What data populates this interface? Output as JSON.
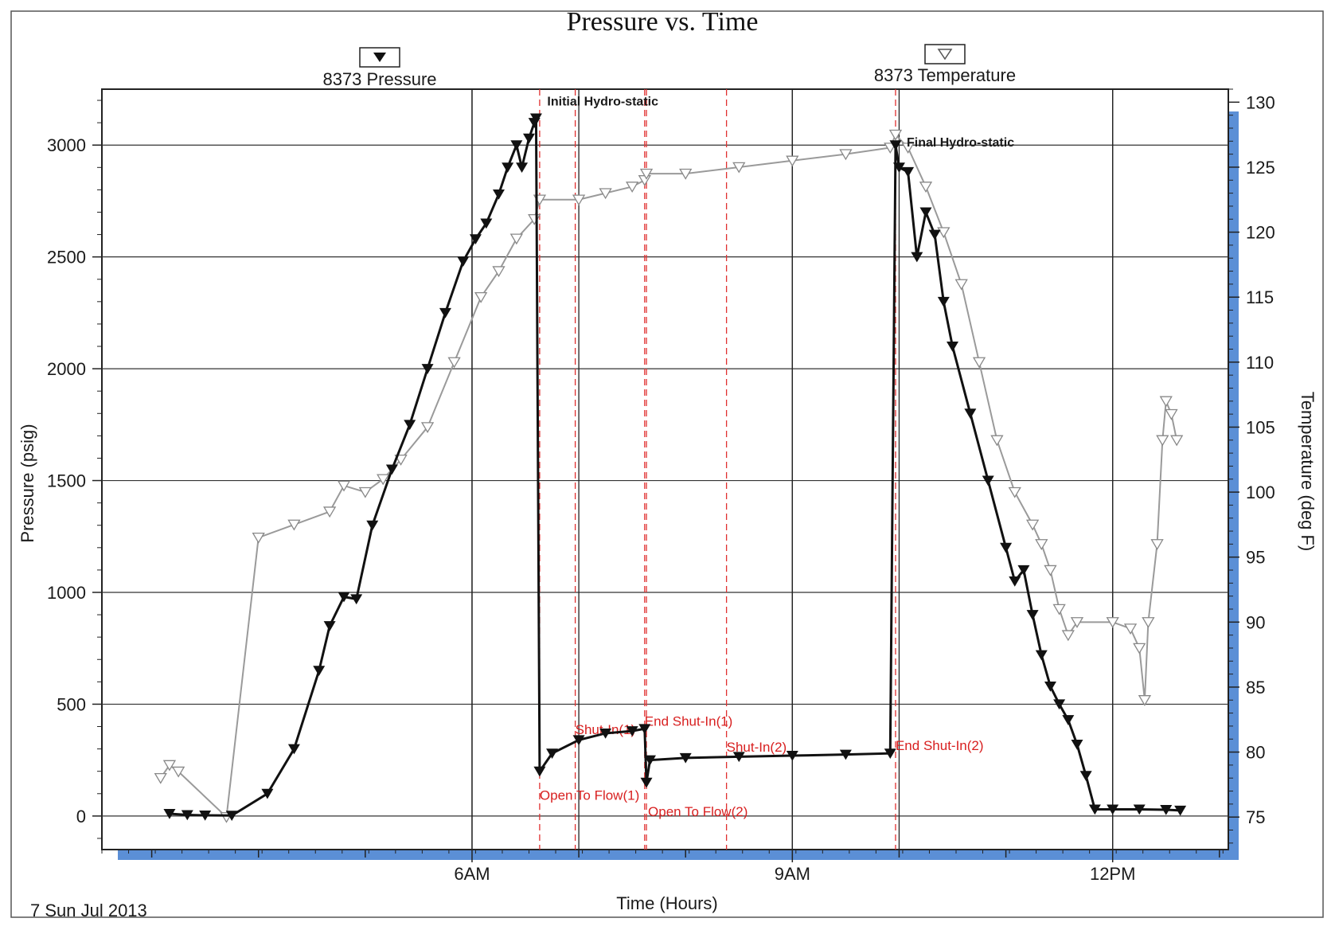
{
  "chart_data": {
    "type": "line",
    "title": "Pressure vs. Time",
    "xlabel": "Time (Hours)",
    "ylabel_left": "Pressure (psig)",
    "ylabel_right": "Temperature (deg F)",
    "date_label": "7 Sun Jul 2013",
    "x_ticks": [
      {
        "value": "06:00",
        "label": "6AM"
      },
      {
        "value": "09:00",
        "label": "9AM"
      },
      {
        "value": "12:00",
        "label": "12PM"
      }
    ],
    "xlim": [
      "02:32",
      "13:05"
    ],
    "ylim_left": [
      -150,
      3250
    ],
    "yticks_left": [
      0,
      500,
      1000,
      1500,
      2000,
      2500,
      3000
    ],
    "ylim_right": [
      72.5,
      131
    ],
    "yticks_right": [
      75,
      80,
      85,
      90,
      95,
      100,
      105,
      110,
      115,
      120,
      125,
      130
    ],
    "grid": true,
    "legend_placement": "top",
    "colors": {
      "pressure": "#111111",
      "temperature": "#999999",
      "events": "#e03030",
      "frame_shadow": "#5b8fd6"
    },
    "series": [
      {
        "name": "8373 Pressure",
        "axis": "left",
        "marker": "filled-down-triangle",
        "points": [
          [
            "03:10",
            10
          ],
          [
            "03:20",
            5
          ],
          [
            "03:30",
            3
          ],
          [
            "03:45",
            2
          ],
          [
            "04:05",
            100
          ],
          [
            "04:20",
            300
          ],
          [
            "04:34",
            650
          ],
          [
            "04:40",
            850
          ],
          [
            "04:48",
            980
          ],
          [
            "04:55",
            970
          ],
          [
            "05:04",
            1300
          ],
          [
            "05:15",
            1550
          ],
          [
            "05:25",
            1750
          ],
          [
            "05:35",
            2000
          ],
          [
            "05:45",
            2250
          ],
          [
            "05:55",
            2480
          ],
          [
            "06:02",
            2580
          ],
          [
            "06:08",
            2650
          ],
          [
            "06:15",
            2780
          ],
          [
            "06:20",
            2900
          ],
          [
            "06:25",
            3000
          ],
          [
            "06:28",
            2900
          ],
          [
            "06:32",
            3030
          ],
          [
            "06:35",
            3100
          ],
          [
            "06:36",
            3120
          ],
          [
            "06:38",
            200
          ],
          [
            "06:45",
            280
          ],
          [
            "07:00",
            340
          ],
          [
            "07:15",
            370
          ],
          [
            "07:30",
            380
          ],
          [
            "07:37",
            390
          ],
          [
            "07:38",
            150
          ],
          [
            "07:40",
            250
          ],
          [
            "08:00",
            260
          ],
          [
            "08:30",
            265
          ],
          [
            "09:00",
            270
          ],
          [
            "09:30",
            275
          ],
          [
            "09:55",
            280
          ],
          [
            "09:58",
            3000
          ],
          [
            "10:00",
            2900
          ],
          [
            "10:05",
            2880
          ],
          [
            "10:10",
            2500
          ],
          [
            "10:15",
            2700
          ],
          [
            "10:20",
            2600
          ],
          [
            "10:25",
            2300
          ],
          [
            "10:30",
            2100
          ],
          [
            "10:40",
            1800
          ],
          [
            "10:50",
            1500
          ],
          [
            "11:00",
            1200
          ],
          [
            "11:05",
            1050
          ],
          [
            "11:10",
            1100
          ],
          [
            "11:15",
            900
          ],
          [
            "11:20",
            720
          ],
          [
            "11:25",
            580
          ],
          [
            "11:30",
            500
          ],
          [
            "11:35",
            430
          ],
          [
            "11:40",
            320
          ],
          [
            "11:45",
            180
          ],
          [
            "11:50",
            30
          ],
          [
            "12:00",
            30
          ],
          [
            "12:15",
            30
          ],
          [
            "12:30",
            28
          ],
          [
            "12:38",
            25
          ]
        ]
      },
      {
        "name": "8373 Temperature",
        "axis": "right",
        "marker": "hollow-down-triangle",
        "points": [
          [
            "03:05",
            78
          ],
          [
            "03:10",
            79
          ],
          [
            "03:15",
            78.5
          ],
          [
            "03:42",
            75
          ],
          [
            "04:00",
            96.5
          ],
          [
            "04:20",
            97.5
          ],
          [
            "04:40",
            98.5
          ],
          [
            "04:48",
            100.5
          ],
          [
            "05:00",
            100
          ],
          [
            "05:10",
            101
          ],
          [
            "05:20",
            102.5
          ],
          [
            "05:35",
            105
          ],
          [
            "05:50",
            110
          ],
          [
            "06:05",
            115
          ],
          [
            "06:15",
            117
          ],
          [
            "06:25",
            119.5
          ],
          [
            "06:35",
            121
          ],
          [
            "06:38",
            122.5
          ],
          [
            "07:00",
            122.5
          ],
          [
            "07:15",
            123
          ],
          [
            "07:30",
            123.5
          ],
          [
            "07:37",
            124
          ],
          [
            "07:38",
            124.5
          ],
          [
            "08:00",
            124.5
          ],
          [
            "08:30",
            125
          ],
          [
            "09:00",
            125.5
          ],
          [
            "09:30",
            126
          ],
          [
            "09:55",
            126.5
          ],
          [
            "09:58",
            127.5
          ],
          [
            "10:05",
            126.5
          ],
          [
            "10:15",
            123.5
          ],
          [
            "10:25",
            120
          ],
          [
            "10:35",
            116
          ],
          [
            "10:45",
            110
          ],
          [
            "10:55",
            104
          ],
          [
            "11:05",
            100
          ],
          [
            "11:15",
            97.5
          ],
          [
            "11:20",
            96
          ],
          [
            "11:25",
            94
          ],
          [
            "11:30",
            91
          ],
          [
            "11:35",
            89
          ],
          [
            "11:40",
            90
          ],
          [
            "12:00",
            90
          ],
          [
            "12:10",
            89.5
          ],
          [
            "12:15",
            88
          ],
          [
            "12:18",
            84
          ],
          [
            "12:20",
            90
          ],
          [
            "12:25",
            96
          ],
          [
            "12:28",
            104
          ],
          [
            "12:30",
            107
          ],
          [
            "12:33",
            106
          ],
          [
            "12:36",
            104
          ]
        ]
      }
    ],
    "events": [
      {
        "time": "06:38",
        "label": "Open To Flow(1)",
        "pressure": 180
      },
      {
        "time": "06:58",
        "label": "Shut-In(1)",
        "pressure": 330
      },
      {
        "time": "07:37",
        "label": "End Shut-In(1)",
        "pressure": 390
      },
      {
        "time": "07:38",
        "label": "Open To Flow(2)",
        "pressure": 120
      },
      {
        "time": "08:23",
        "label": "Shut-In(2)",
        "pressure": 280
      },
      {
        "time": "09:58",
        "label": "End Shut-In(2)",
        "pressure": 280
      }
    ],
    "annotations": [
      {
        "label": "Initial Hydro-static",
        "time": "06:36",
        "pressure": 3120
      },
      {
        "label": "Final Hydro-static",
        "time": "09:58",
        "pressure": 3000
      }
    ]
  }
}
